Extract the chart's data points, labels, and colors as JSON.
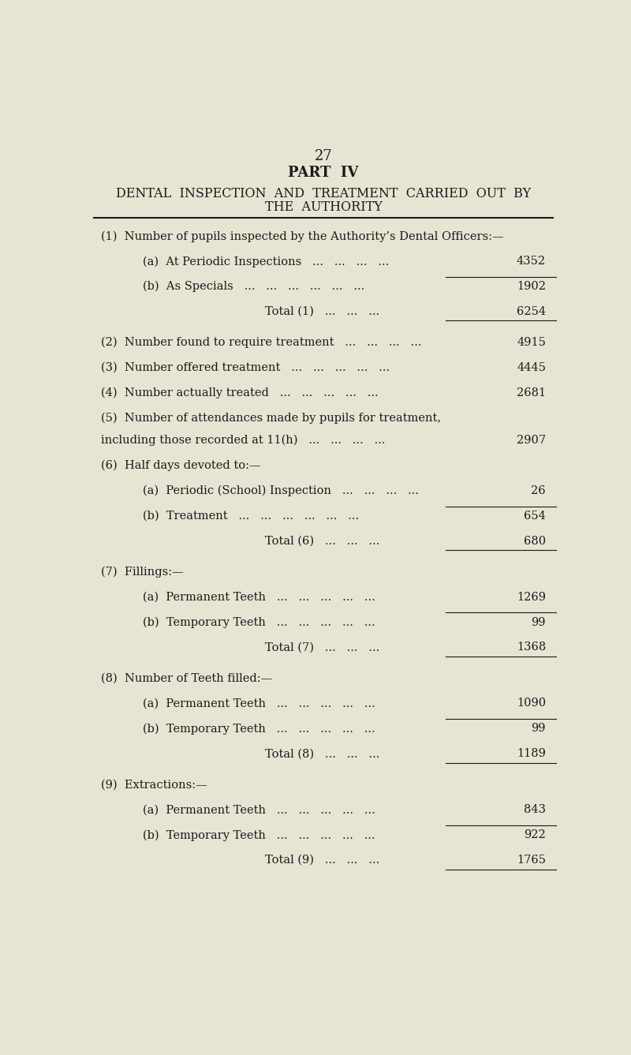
{
  "page_number": "27",
  "part_title": "PART  IV",
  "main_title_line1": "DENTAL  INSPECTION  AND  TREATMENT  CARRIED  OUT  BY",
  "main_title_line2": "THE  AUTHORITY",
  "background_color": "#e8e4d4",
  "text_color": "#1a1a1a",
  "sections": [
    {
      "label": "(1)  Number of pupils inspected by the Authority’s Dental Officers:—",
      "indent": 0,
      "value": null,
      "is_header": true,
      "underline_before": false,
      "underline_after": false,
      "multiline": false
    },
    {
      "label": "(a)  At Periodic Inspections   ...   ...   ...   ...",
      "indent": 1,
      "value": "4352",
      "is_header": false,
      "underline_before": false,
      "underline_after": false,
      "multiline": false
    },
    {
      "label": "(b)  As Specials   ...   ...   ...   ...   ...   ...",
      "indent": 1,
      "value": "1902",
      "is_header": false,
      "underline_before": true,
      "underline_after": false,
      "multiline": false
    },
    {
      "label": "Total (1)   ...   ...   ...",
      "indent": 2,
      "value": "6254",
      "is_header": false,
      "underline_before": false,
      "underline_after": true,
      "multiline": false
    },
    {
      "label": "(2)  Number found to require treatment   ...   ...   ...   ...",
      "indent": 0,
      "value": "4915",
      "is_header": false,
      "underline_before": false,
      "underline_after": false,
      "multiline": false
    },
    {
      "label": "(3)  Number offered treatment   ...   ...   ...   ...   ...",
      "indent": 0,
      "value": "4445",
      "is_header": false,
      "underline_before": false,
      "underline_after": false,
      "multiline": false
    },
    {
      "label": "(4)  Number actually treated   ...   ...   ...   ...   ...",
      "indent": 0,
      "value": "2681",
      "is_header": false,
      "underline_before": false,
      "underline_after": false,
      "multiline": false
    },
    {
      "label": "(5)  Number of attendances made by pupils for treatment,",
      "label2": "        including those recorded at 11(h)   ...   ...   ...   ...",
      "indent": 0,
      "value": "2907",
      "is_header": false,
      "underline_before": false,
      "underline_after": false,
      "multiline": true
    },
    {
      "label": "(6)  Half days devoted to:—",
      "indent": 0,
      "value": null,
      "is_header": true,
      "underline_before": false,
      "underline_after": false,
      "multiline": false
    },
    {
      "label": "(a)  Periodic (School) Inspection   ...   ...   ...   ...",
      "indent": 1,
      "value": "26",
      "is_header": false,
      "underline_before": false,
      "underline_after": false,
      "multiline": false
    },
    {
      "label": "(b)  Treatment   ...   ...   ...   ...   ...   ...",
      "indent": 1,
      "value": "654",
      "is_header": false,
      "underline_before": true,
      "underline_after": false,
      "multiline": false
    },
    {
      "label": "Total (6)   ...   ...   ...",
      "indent": 2,
      "value": "680",
      "is_header": false,
      "underline_before": false,
      "underline_after": true,
      "multiline": false
    },
    {
      "label": "(7)  Fillings:—",
      "indent": 0,
      "value": null,
      "is_header": true,
      "underline_before": false,
      "underline_after": false,
      "multiline": false
    },
    {
      "label": "(a)  Permanent Teeth   ...   ...   ...   ...   ...",
      "indent": 1,
      "value": "1269",
      "is_header": false,
      "underline_before": false,
      "underline_after": false,
      "multiline": false
    },
    {
      "label": "(b)  Temporary Teeth   ...   ...   ...   ...   ...",
      "indent": 1,
      "value": "99",
      "is_header": false,
      "underline_before": true,
      "underline_after": false,
      "multiline": false
    },
    {
      "label": "Total (7)   ...   ...   ...",
      "indent": 2,
      "value": "1368",
      "is_header": false,
      "underline_before": false,
      "underline_after": true,
      "multiline": false
    },
    {
      "label": "(8)  Number of Teeth filled:—",
      "indent": 0,
      "value": null,
      "is_header": true,
      "underline_before": false,
      "underline_after": false,
      "multiline": false
    },
    {
      "label": "(a)  Permanent Teeth   ...   ...   ...   ...   ...",
      "indent": 1,
      "value": "1090",
      "is_header": false,
      "underline_before": false,
      "underline_after": false,
      "multiline": false
    },
    {
      "label": "(b)  Temporary Teeth   ...   ...   ...   ...   ...",
      "indent": 1,
      "value": "99",
      "is_header": false,
      "underline_before": true,
      "underline_after": false,
      "multiline": false
    },
    {
      "label": "Total (8)   ...   ...   ...",
      "indent": 2,
      "value": "1189",
      "is_header": false,
      "underline_before": false,
      "underline_after": true,
      "multiline": false
    },
    {
      "label": "(9)  Extractions:—",
      "indent": 0,
      "value": null,
      "is_header": true,
      "underline_before": false,
      "underline_after": false,
      "multiline": false
    },
    {
      "label": "(a)  Permanent Teeth   ...   ...   ...   ...   ...",
      "indent": 1,
      "value": "843",
      "is_header": false,
      "underline_before": false,
      "underline_after": false,
      "multiline": false
    },
    {
      "label": "(b)  Temporary Teeth   ...   ...   ...   ...   ...",
      "indent": 1,
      "value": "922",
      "is_header": false,
      "underline_before": true,
      "underline_after": false,
      "multiline": false
    },
    {
      "label": "Total (9)   ...   ...   ...",
      "indent": 2,
      "value": "1765",
      "is_header": false,
      "underline_before": false,
      "underline_after": true,
      "multiline": false
    }
  ]
}
